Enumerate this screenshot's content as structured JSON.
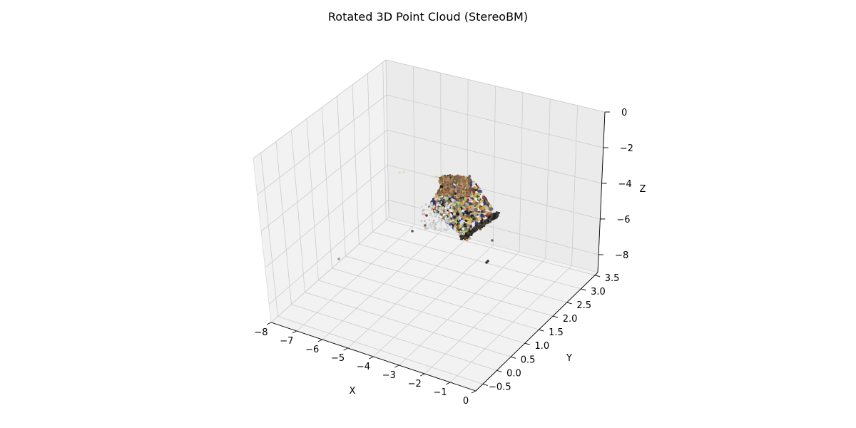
{
  "chart_data": {
    "type": "scatter3d",
    "title": "Rotated 3D Point Cloud (StereoBM)",
    "xlabel": "X",
    "ylabel": "Y",
    "zlabel": "Z",
    "xlim": [
      -8,
      0
    ],
    "ylim": [
      -0.75,
      3.6
    ],
    "zlim": [
      -9,
      0
    ],
    "xticks": [
      "−8",
      "−7",
      "−6",
      "−5",
      "−4",
      "−3",
      "−2",
      "−1",
      "0"
    ],
    "yticks": [
      "−0.5",
      "0.0",
      "0.5",
      "1.0",
      "1.5",
      "2.0",
      "2.5",
      "3.0",
      "3.5"
    ],
    "zticks": [
      "0",
      "−2",
      "−4",
      "−6",
      "−8"
    ],
    "grid": true,
    "pane_color": "#f2f2f2",
    "grid_color": "#cccccc",
    "point_cloud_colors": [
      "#8a6a4a",
      "#b48a5a",
      "#6e5a48",
      "#c9b46a",
      "#e0c060",
      "#3a3a3a",
      "#1e1e1e",
      "#cfd8df",
      "#e8edf0",
      "#4a4aa0",
      "#2a3e88",
      "#a03030",
      "#7a8a6a",
      "#9ad06a",
      "#c8c0b0",
      "#5a4636",
      "#b0a090",
      "#d4a040"
    ]
  }
}
